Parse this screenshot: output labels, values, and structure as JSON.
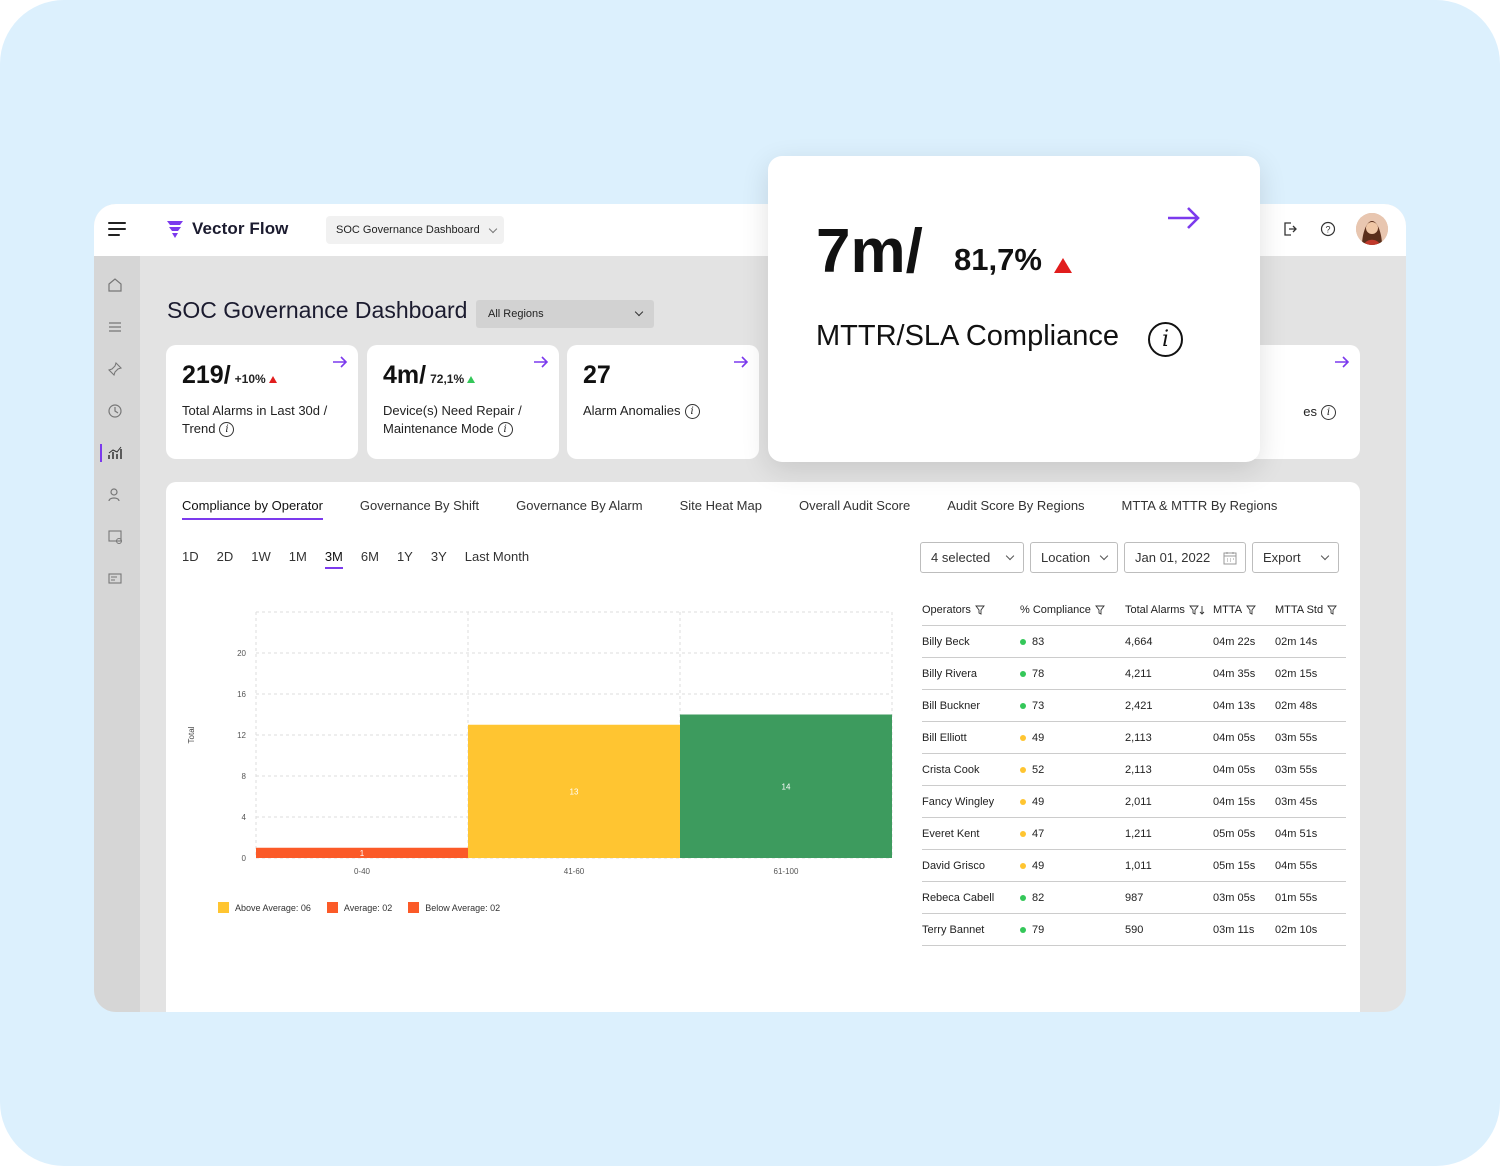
{
  "app": {
    "brand": "Vector Flow",
    "dashboard_select": "SOC Governance Dashboard",
    "accent": "#7c3aed"
  },
  "page": {
    "title": "SOC Governance Dashboard",
    "region": "All Regions"
  },
  "kpis": [
    {
      "value": "219/",
      "delta": "+10%",
      "trend": "up-red",
      "label": "Total Alarms in Last 30d / Trend"
    },
    {
      "value": "4m/",
      "delta": "72,1%",
      "trend": "up-green",
      "label": "Device(s) Need Repair / Maintenance Mode"
    },
    {
      "value": "27",
      "delta": "",
      "trend": "",
      "label": "Alarm Anomalies"
    },
    {
      "value": "",
      "delta": "",
      "trend": "",
      "label": "es"
    }
  ],
  "popup": {
    "value": "7m/",
    "delta": "81,7%",
    "label": "MTTR/SLA Compliance"
  },
  "tabs": [
    "Compliance by Operator",
    "Governance By Shift",
    "Governance By Alarm",
    "Site Heat Map",
    "Overall Audit Score",
    "Audit Score By Regions",
    "MTTA & MTTR By Regions"
  ],
  "ranges": [
    "1D",
    "2D",
    "1W",
    "1M",
    "3M",
    "6M",
    "1Y",
    "3Y",
    "Last Month"
  ],
  "active_range": "3M",
  "filters": {
    "selected": "4 selected",
    "location": "Location",
    "date": "Jan 01, 2022",
    "export": "Export"
  },
  "chart_data": {
    "type": "bar",
    "categories": [
      "0-40",
      "41-60",
      "61-100"
    ],
    "values": [
      1,
      13,
      14
    ],
    "colors": [
      "#fb5a28",
      "#ffc531",
      "#3d9b5e"
    ],
    "ylabel": "Total",
    "yticks": [
      0,
      4,
      8,
      12,
      16,
      20
    ],
    "ylim": [
      0,
      24
    ],
    "grid": true,
    "legend": [
      {
        "label": "Above Average: 06",
        "color": "#ffc531"
      },
      {
        "label": "Average: 02",
        "color": "#fb5a28"
      },
      {
        "label": "Below Average: 02",
        "color": "#fb5a28"
      }
    ]
  },
  "table": {
    "headers": [
      "Operators",
      "% Compliance",
      "Total Alarms",
      "MTTA",
      "MTTA Std"
    ],
    "rows": [
      {
        "name": "Billy Beck",
        "compliance": "83",
        "status": "#34c759",
        "alarms": "4,664",
        "mtta": "04m 22s",
        "std": "02m 14s"
      },
      {
        "name": "Billy Rivera",
        "compliance": "78",
        "status": "#34c759",
        "alarms": "4,211",
        "mtta": "04m 35s",
        "std": "02m 15s"
      },
      {
        "name": "Bill Buckner",
        "compliance": "73",
        "status": "#34c759",
        "alarms": "2,421",
        "mtta": "04m 13s",
        "std": "02m 48s"
      },
      {
        "name": "Bill Elliott",
        "compliance": "49",
        "status": "#ffc531",
        "alarms": "2,113",
        "mtta": "04m 05s",
        "std": "03m 55s"
      },
      {
        "name": "Crista Cook",
        "compliance": "52",
        "status": "#ffc531",
        "alarms": "2,113",
        "mtta": "04m 05s",
        "std": "03m 55s"
      },
      {
        "name": "Fancy Wingley",
        "compliance": "49",
        "status": "#ffc531",
        "alarms": "2,011",
        "mtta": "04m 15s",
        "std": "03m 45s"
      },
      {
        "name": "Everet Kent",
        "compliance": "47",
        "status": "#ffc531",
        "alarms": "1,211",
        "mtta": "05m 05s",
        "std": "04m 51s"
      },
      {
        "name": "David Grisco",
        "compliance": "49",
        "status": "#ffc531",
        "alarms": "1,011",
        "mtta": "05m 15s",
        "std": "04m 55s"
      },
      {
        "name": "Rebeca Cabell",
        "compliance": "82",
        "status": "#34c759",
        "alarms": "987",
        "mtta": "03m 05s",
        "std": "01m 55s"
      },
      {
        "name": "Terry Bannet",
        "compliance": "79",
        "status": "#34c759",
        "alarms": "590",
        "mtta": "03m 11s",
        "std": "02m 10s"
      }
    ]
  }
}
